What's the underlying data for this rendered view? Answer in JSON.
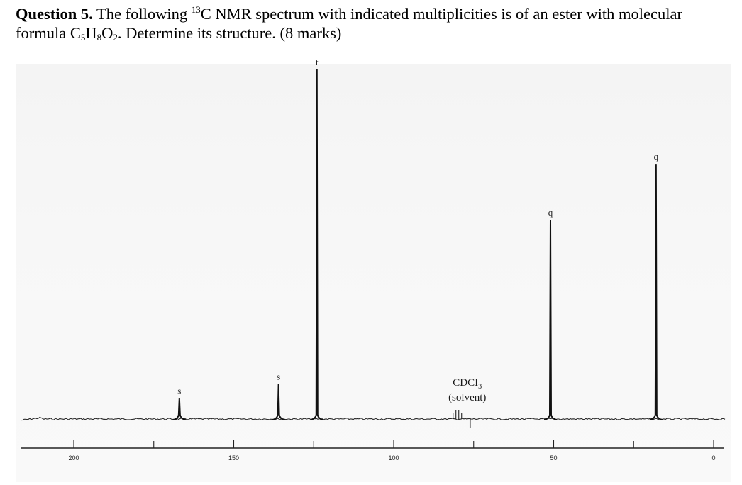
{
  "question": {
    "number": "Question 5.",
    "text_pre_sup": "The following",
    "isotope_sup": "13",
    "text_post_sup": "C NMR spectrum with indicated multiplicities is of an ester with molecular formula C",
    "sub_c": "5",
    "text_h": "H",
    "sub_h": "8",
    "text_o": "O",
    "sub_o": "2",
    "text_end": ". Determine its structure. (8 marks)"
  },
  "chart_data": {
    "type": "line",
    "title": "",
    "xlabel": "",
    "ylabel": "",
    "xlim": [
      200,
      0
    ],
    "x_reversed": true,
    "x_ticks": [
      200,
      150,
      100,
      50,
      0
    ],
    "peaks": [
      {
        "x": 167,
        "height": 0.06,
        "multiplicity": "s"
      },
      {
        "x": 136,
        "height": 0.1,
        "multiplicity": "s"
      },
      {
        "x": 124,
        "height": 1.0,
        "multiplicity": "t"
      },
      {
        "x": 51,
        "height": 0.57,
        "multiplicity": "q"
      },
      {
        "x": 18,
        "height": 0.73,
        "multiplicity": "q"
      }
    ],
    "solvent": {
      "x": 77,
      "label_line1": "CDCI",
      "label_sub": "3",
      "label_line2": "(solvent)"
    }
  }
}
